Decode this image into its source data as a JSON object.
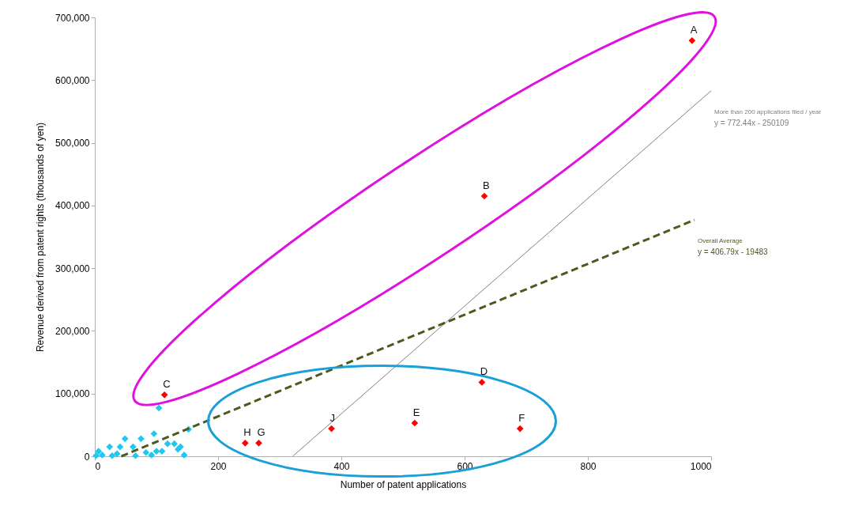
{
  "chart_data": {
    "type": "scatter",
    "xlabel": "Number of patent applications",
    "ylabel": "Revenue derived from patent rights (thousands of yen)",
    "xlim": [
      0,
      1000
    ],
    "xticks": [
      0,
      200,
      400,
      600,
      800,
      1000
    ],
    "ylim": [
      0,
      700000
    ],
    "yticks": [
      {
        "value": 0,
        "label": "0"
      },
      {
        "value": 100000,
        "label": "100,000"
      },
      {
        "value": 200000,
        "label": "200,000"
      },
      {
        "value": 300000,
        "label": "300,000"
      },
      {
        "value": 400000,
        "label": "400,000"
      },
      {
        "value": 500000,
        "label": "500,000"
      },
      {
        "value": 600000,
        "label": "600,000"
      },
      {
        "value": 700000,
        "label": "700,000"
      }
    ],
    "grid": false,
    "marker": "diamond",
    "series": [
      {
        "color": "#1ec8f0",
        "x": [
          104,
          152,
          49,
          75,
          96,
          24,
          41,
          62,
          118,
          129,
          139,
          145,
          6,
          12,
          36,
          83,
          100,
          92,
          109,
          2,
          66,
          28,
          135
        ],
        "values": [
          77000,
          43000,
          28000,
          28000,
          36000,
          15000,
          15000,
          15000,
          20000,
          20000,
          15000,
          2000,
          8000,
          2000,
          4000,
          6000,
          8000,
          2000,
          8000,
          1000,
          1000,
          1000,
          11000
        ]
      },
      {
        "color": "#ff0000",
        "x": [
          969,
          632,
          113,
          628,
          519,
          690,
          266,
          244,
          384
        ],
        "values": [
          663000,
          415000,
          98000,
          118000,
          53000,
          44000,
          21000,
          21000,
          44000
        ]
      },
      {
        "type": "line",
        "name": "More than 200 applications filed / year",
        "color": "#808080",
        "line_style": "solid",
        "marker": "none",
        "x": [
          321,
          1000
        ],
        "values": [
          0,
          583000
        ]
      },
      {
        "type": "line",
        "name": "Overall Average",
        "color": "#4b5a1e",
        "line_style": "dashed",
        "marker": "none",
        "x": [
          43,
          973
        ],
        "values": [
          0,
          377000
        ]
      }
    ],
    "annotations": [
      {
        "text": "A",
        "x": 969,
        "y": 663000
      },
      {
        "text": "B",
        "x": 632,
        "y": 415000
      },
      {
        "text": "C",
        "x": 113,
        "y": 98000
      },
      {
        "text": "D",
        "x": 628,
        "y": 118000
      },
      {
        "text": "E",
        "x": 519,
        "y": 53000
      },
      {
        "text": "F",
        "x": 690,
        "y": 44000
      },
      {
        "text": "G",
        "x": 266,
        "y": 21000
      },
      {
        "text": "H",
        "x": 244,
        "y": 21000
      },
      {
        "text": "J",
        "x": 384,
        "y": 44000
      },
      "y = 772.44x - 250109",
      "y = 406.79x - 19483"
    ]
  }
}
